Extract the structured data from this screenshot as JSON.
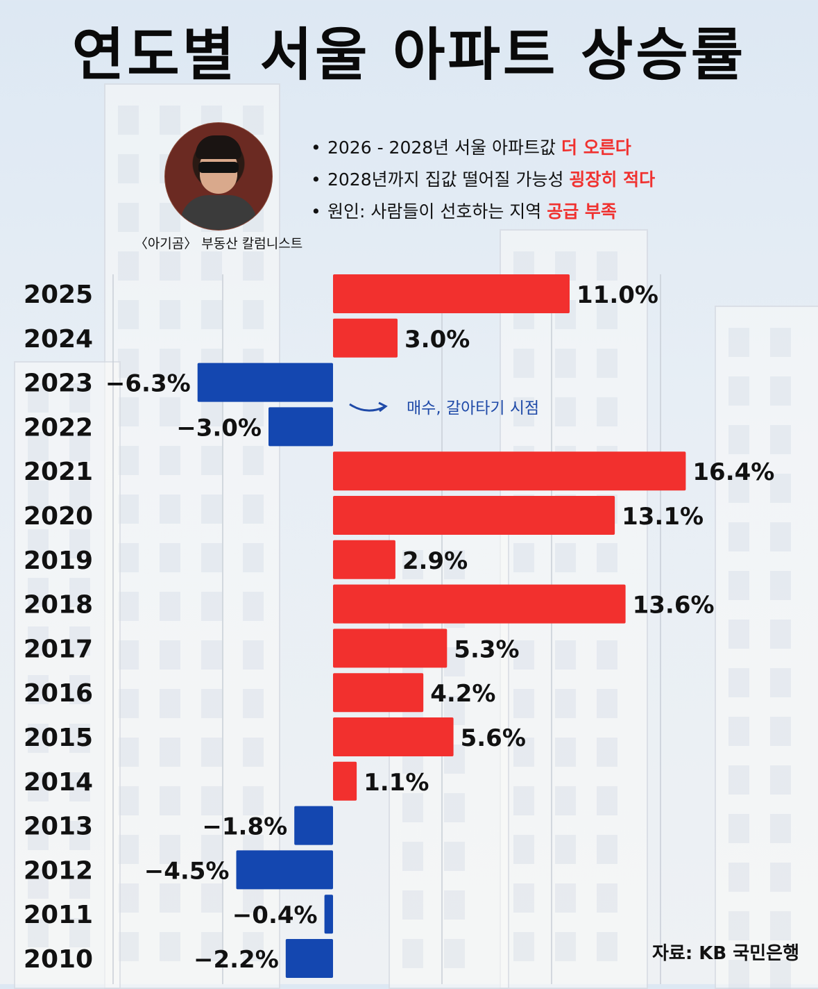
{
  "title": "연도별 서울 아파트 상승률",
  "caption": "〈아기곰〉 부동산 칼럼니스트",
  "bullets": [
    {
      "text": "2026 - 2028년 서울 아파트값",
      "highlight": "더 오른다"
    },
    {
      "text": "2028년까지 집값 떨어질 가능성",
      "highlight": "굉장히 적다"
    },
    {
      "text": "원인: 사람들이 선호하는 지역",
      "highlight": "공급 부족"
    }
  ],
  "note": "매수, 갈아타기 시점",
  "source": "자료: KB 국민은행",
  "colors": {
    "positive": "#f2302e",
    "negative": "#1447b0",
    "highlight": "#f0312f"
  },
  "chart_data": {
    "type": "bar",
    "orientation": "horizontal",
    "categories": [
      "2025",
      "2024",
      "2023",
      "2022",
      "2021",
      "2020",
      "2019",
      "2018",
      "2017",
      "2016",
      "2015",
      "2014",
      "2013",
      "2012",
      "2011",
      "2010"
    ],
    "values": [
      11.0,
      3.0,
      -6.3,
      -3.0,
      16.4,
      13.1,
      2.9,
      13.6,
      5.3,
      4.2,
      5.6,
      1.1,
      -1.8,
      -4.5,
      -0.4,
      -2.2
    ],
    "labels": [
      "11.0%",
      "3.0%",
      "−6.3%",
      "−3.0%",
      "16.4%",
      "13.1%",
      "2.9%",
      "13.6%",
      "5.3%",
      "4.2%",
      "5.6%",
      "1.1%",
      "−1.8%",
      "−4.5%",
      "−0.4%",
      "−2.2%"
    ],
    "xlim": [
      -10.3,
      16.4
    ],
    "grid": true
  }
}
